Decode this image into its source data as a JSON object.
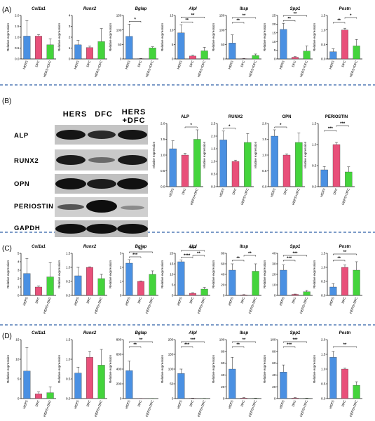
{
  "colors": {
    "HERS": "#4a90e2",
    "DFC": "#e8507a",
    "HERS+DFC": "#44d43c",
    "divider": "#2f5fa8"
  },
  "panel_labels": [
    "(A)",
    "(B)",
    "(C)",
    "(D)"
  ],
  "western_blot": {
    "headers": [
      "HERS",
      "DFC",
      "HERS",
      "+DFC"
    ],
    "bands": [
      "ALP",
      "RUNX2",
      "OPN",
      "PERIOSTIN",
      "GAPDH"
    ]
  },
  "chart_data": [
    {
      "id": "A-Col1a1",
      "type": "bar",
      "title": "Col1a1",
      "italic": true,
      "ylabel": "Relative expression",
      "categories": [
        "HERS",
        "DFC",
        "HERS+DFC"
      ],
      "values": [
        1.05,
        1.05,
        0.65
      ],
      "errors": [
        0.7,
        0.07,
        0.28
      ],
      "ylim": [
        0,
        2
      ],
      "yticks": [
        0,
        0.5,
        1,
        1.5,
        2
      ],
      "ytick_labels": [
        "0.0",
        "0.5",
        "1.0",
        "1.5",
        "2.0"
      ],
      "sig": []
    },
    {
      "id": "A-Runx2",
      "type": "bar",
      "title": "Runx2",
      "italic": true,
      "ylabel": "Relative expression",
      "categories": [
        "HERS",
        "DFC",
        "HERS+DFC"
      ],
      "values": [
        1.3,
        1.05,
        1.6
      ],
      "errors": [
        0.4,
        0.12,
        1.2
      ],
      "ylim": [
        0,
        4
      ],
      "yticks": [
        0,
        1,
        2,
        3,
        4
      ],
      "ytick_labels": [
        "0",
        "1",
        "2",
        "3",
        "4"
      ],
      "sig": []
    },
    {
      "id": "A-Bglap",
      "type": "bar",
      "title": "Bglap",
      "italic": true,
      "ylabel": "Relative expression",
      "categories": [
        "HERS",
        "DFC",
        "HERS+DFC"
      ],
      "values": [
        78,
        1,
        38
      ],
      "errors": [
        42,
        0.5,
        4
      ],
      "ylim": [
        0,
        150
      ],
      "yticks": [
        0,
        50,
        100,
        150
      ],
      "ytick_labels": [
        "0",
        "50",
        "100",
        "150"
      ],
      "sig": [
        {
          "a": 0,
          "b": 1,
          "label": "*"
        }
      ]
    },
    {
      "id": "A-Alpl",
      "type": "bar",
      "title": "Alpl",
      "italic": true,
      "ylabel": "Relative expression",
      "categories": [
        "HERS",
        "DFC",
        "HERS+DFC"
      ],
      "values": [
        9,
        1,
        2.8
      ],
      "errors": [
        2.8,
        0.3,
        1.2
      ],
      "ylim": [
        0,
        15
      ],
      "yticks": [
        0,
        5,
        10,
        15
      ],
      "ytick_labels": [
        "0",
        "5",
        "10",
        "15"
      ],
      "sig": [
        {
          "a": 0,
          "b": 1,
          "label": "**"
        },
        {
          "a": 0,
          "b": 2,
          "label": "**"
        }
      ]
    },
    {
      "id": "A-Ibsp",
      "type": "bar",
      "title": "Ibsp",
      "italic": true,
      "ylabel": "Relative expression",
      "categories": [
        "HERS",
        "DFC",
        "HERS+DFC"
      ],
      "values": [
        55,
        1,
        12
      ],
      "errors": [
        28,
        0.5,
        5
      ],
      "ylim": [
        0,
        150
      ],
      "yticks": [
        0,
        50,
        100,
        150
      ],
      "ytick_labels": [
        "0",
        "50",
        "100",
        "150"
      ],
      "sig": [
        {
          "a": 0,
          "b": 1,
          "label": "**"
        },
        {
          "a": 0,
          "b": 2,
          "label": "**"
        }
      ]
    },
    {
      "id": "A-Spp1",
      "type": "bar",
      "title": "Spp1",
      "italic": true,
      "ylabel": "Relative expression",
      "categories": [
        "HERS",
        "DFC",
        "HERS+DFC"
      ],
      "values": [
        17,
        1,
        4.5
      ],
      "errors": [
        3.5,
        0.3,
        3
      ],
      "ylim": [
        0,
        25
      ],
      "yticks": [
        0,
        5,
        10,
        15,
        20,
        25
      ],
      "ytick_labels": [
        "0",
        "5",
        "10",
        "15",
        "20",
        "25"
      ],
      "sig": [
        {
          "a": 0,
          "b": 1,
          "label": "**"
        },
        {
          "a": 0,
          "b": 2,
          "label": "**"
        }
      ]
    },
    {
      "id": "A-Postn",
      "type": "bar",
      "title": "Postn",
      "italic": true,
      "ylabel": "Relative expression",
      "categories": [
        "HERS",
        "DFC",
        "HERS+DFC"
      ],
      "values": [
        0.25,
        1.0,
        0.45
      ],
      "errors": [
        0.1,
        0.06,
        0.22
      ],
      "ylim": [
        0,
        1.5
      ],
      "yticks": [
        0,
        0.5,
        1,
        1.5
      ],
      "ytick_labels": [
        "0.0",
        "0.5",
        "1.0",
        "1.5"
      ],
      "sig": [
        {
          "a": 0,
          "b": 1,
          "label": "**"
        },
        {
          "a": 1,
          "b": 2,
          "label": "*"
        }
      ]
    },
    {
      "id": "B-ALP",
      "type": "bar",
      "title": "ALP",
      "italic": false,
      "ylabel": "relative expression",
      "categories": [
        "HERS",
        "DFC",
        "HERS+DFC"
      ],
      "values": [
        1.2,
        1.0,
        1.5
      ],
      "errors": [
        0.25,
        0.05,
        0.3
      ],
      "ylim": [
        0,
        2
      ],
      "yticks": [
        0,
        0.5,
        1,
        1.5,
        2
      ],
      "ytick_labels": [
        "0.0",
        "0.5",
        "1.0",
        "1.5",
        "2.0"
      ],
      "sig": [
        {
          "a": 1,
          "b": 2,
          "label": "*"
        }
      ]
    },
    {
      "id": "B-RUNX2",
      "type": "bar",
      "title": "RUNX2",
      "italic": false,
      "ylabel": "relative expression",
      "categories": [
        "HERS",
        "DFC",
        "HERS+DFC"
      ],
      "values": [
        1.85,
        1.0,
        1.75
      ],
      "errors": [
        0.35,
        0.05,
        0.35
      ],
      "ylim": [
        0,
        2.5
      ],
      "yticks": [
        0,
        0.5,
        1,
        1.5,
        2,
        2.5
      ],
      "ytick_labels": [
        "0.0",
        "0.5",
        "1.0",
        "1.5",
        "2.0",
        "2.5"
      ],
      "sig": [
        {
          "a": 0,
          "b": 1,
          "label": "*"
        }
      ]
    },
    {
      "id": "B-OPN",
      "type": "bar",
      "title": "OPN",
      "italic": false,
      "ylabel": "relative expression",
      "categories": [
        "HERS",
        "DFC",
        "HERS+DFC"
      ],
      "values": [
        1.6,
        1.0,
        1.4
      ],
      "errors": [
        0.2,
        0.04,
        0.3
      ],
      "ylim": [
        0,
        2
      ],
      "yticks": [
        0,
        0.5,
        1,
        1.5,
        2
      ],
      "ytick_labels": [
        "0.0",
        "0.5",
        "1.0",
        "1.5",
        "2.0"
      ],
      "sig": [
        {
          "a": 0,
          "b": 1,
          "label": "*"
        }
      ]
    },
    {
      "id": "B-PERIOSTIN",
      "type": "bar",
      "title": "PERIOSTIN",
      "italic": false,
      "ylabel": "relative expression",
      "categories": [
        "HERS",
        "DFC",
        "HERS+DFC"
      ],
      "values": [
        0.4,
        1.0,
        0.35
      ],
      "errors": [
        0.08,
        0.05,
        0.12
      ],
      "ylim": [
        0,
        1.5
      ],
      "yticks": [
        0,
        0.5,
        1,
        1.5
      ],
      "ytick_labels": [
        "0.0",
        "0.5",
        "1.0",
        "1.5"
      ],
      "sig": [
        {
          "a": 0,
          "b": 1,
          "label": "***"
        },
        {
          "a": 1,
          "b": 2,
          "label": "***"
        }
      ]
    },
    {
      "id": "C-Col1a1",
      "type": "bar",
      "title": "Col1a1",
      "italic": true,
      "ylabel": "Relative expression",
      "categories": [
        "HERS",
        "DFC",
        "HERS+DFC"
      ],
      "values": [
        2.6,
        1.0,
        2.2
      ],
      "errors": [
        1.8,
        0.1,
        1.7
      ],
      "ylim": [
        0,
        5
      ],
      "yticks": [
        0,
        1,
        2,
        3,
        4,
        5
      ],
      "ytick_labels": [
        "0",
        "1",
        "2",
        "3",
        "4",
        "5"
      ],
      "sig": []
    },
    {
      "id": "C-Runx2",
      "type": "bar",
      "title": "Runx2",
      "italic": true,
      "ylabel": "Relative expression",
      "categories": [
        "HERS",
        "DFC",
        "HERS+DFC"
      ],
      "values": [
        0.7,
        1.0,
        0.6
      ],
      "errors": [
        0.3,
        0.02,
        0.15
      ],
      "ylim": [
        0,
        1.5
      ],
      "yticks": [
        0,
        0.5,
        1,
        1.5
      ],
      "ytick_labels": [
        "0.0",
        "0.5",
        "1.0",
        "1.5"
      ],
      "sig": []
    },
    {
      "id": "C-Bglap",
      "type": "bar",
      "title": "Bglap",
      "italic": true,
      "ylabel": "Relative expression",
      "categories": [
        "HERS",
        "DFC",
        "HERS+DFC"
      ],
      "values": [
        2.3,
        1.0,
        1.5
      ],
      "errors": [
        0.25,
        0.03,
        0.25
      ],
      "ylim": [
        0,
        3
      ],
      "yticks": [
        0,
        1,
        2,
        3
      ],
      "ytick_labels": [
        "0",
        "1",
        "2",
        "3"
      ],
      "sig": [
        {
          "a": 0,
          "b": 1,
          "label": "***"
        },
        {
          "a": 0,
          "b": 2,
          "label": "**"
        }
      ]
    },
    {
      "id": "C-Alpl",
      "type": "bar",
      "title": "Alpl",
      "italic": true,
      "ylabel": "Relative expression",
      "categories": [
        "HERS",
        "DFC",
        "HERS+DFC"
      ],
      "values": [
        16,
        1,
        3
      ],
      "errors": [
        0.8,
        0.3,
        0.8
      ],
      "ylim": [
        0,
        20
      ],
      "yticks": [
        0,
        5,
        10,
        15,
        20
      ],
      "ytick_labels": [
        "0",
        "5",
        "10",
        "15",
        "20"
      ],
      "sig": [
        {
          "a": 0,
          "b": 1,
          "label": "****"
        },
        {
          "a": 1,
          "b": 2,
          "label": "**"
        },
        {
          "a": 0,
          "b": 2,
          "label": "****"
        }
      ]
    },
    {
      "id": "C-Ibsp",
      "type": "bar",
      "title": "Ibsp",
      "italic": true,
      "ylabel": "Relative expression",
      "categories": [
        "HERS",
        "DFC",
        "HERS+DFC"
      ],
      "values": [
        48,
        1,
        46
      ],
      "errors": [
        12,
        0.5,
        14
      ],
      "ylim": [
        0,
        80
      ],
      "yticks": [
        0,
        20,
        40,
        60,
        80
      ],
      "ytick_labels": [
        "0",
        "20",
        "40",
        "60",
        "80"
      ],
      "sig": [
        {
          "a": 0,
          "b": 1,
          "label": "**"
        },
        {
          "a": 1,
          "b": 2,
          "label": "**"
        }
      ]
    },
    {
      "id": "C-Spp1",
      "type": "bar",
      "title": "Spp1",
      "italic": true,
      "ylabel": "Relative expression",
      "categories": [
        "HERS",
        "DFC",
        "HERS+DFC"
      ],
      "values": [
        24,
        1,
        3.5
      ],
      "errors": [
        5,
        0.3,
        1.2
      ],
      "ylim": [
        0,
        40
      ],
      "yticks": [
        0,
        10,
        20,
        30,
        40
      ],
      "ytick_labels": [
        "0",
        "10",
        "20",
        "30",
        "40"
      ],
      "sig": [
        {
          "a": 0,
          "b": 1,
          "label": "***"
        },
        {
          "a": 0,
          "b": 2,
          "label": "***"
        }
      ]
    },
    {
      "id": "C-Postn",
      "type": "bar",
      "title": "Postn",
      "italic": true,
      "ylabel": "Relative expression",
      "categories": [
        "HERS",
        "DFC",
        "HERS+DFC"
      ],
      "values": [
        0.3,
        1.0,
        0.9
      ],
      "errors": [
        0.12,
        0.08,
        0.3
      ],
      "ylim": [
        0,
        1.5
      ],
      "yticks": [
        0,
        0.5,
        1,
        1.5
      ],
      "ytick_labels": [
        "0.0",
        "0.5",
        "1.0",
        "1.5"
      ],
      "sig": [
        {
          "a": 0,
          "b": 1,
          "label": "**"
        },
        {
          "a": 0,
          "b": 2,
          "label": "**"
        }
      ]
    },
    {
      "id": "D-Col1a1",
      "type": "bar",
      "title": "Col1a1",
      "italic": true,
      "ylabel": "Relative expression",
      "categories": [
        "HERS",
        "DFC",
        "HERS+DFC"
      ],
      "values": [
        7,
        1.2,
        1.5
      ],
      "errors": [
        6,
        0.5,
        1.5
      ],
      "ylim": [
        0,
        15
      ],
      "yticks": [
        0,
        5,
        10,
        15
      ],
      "ytick_labels": [
        "0",
        "5",
        "10",
        "15"
      ],
      "sig": []
    },
    {
      "id": "D-Runx2",
      "type": "bar",
      "title": "Runx2",
      "italic": true,
      "ylabel": "Relative expression",
      "categories": [
        "HERS",
        "DFC",
        "HERS+DFC"
      ],
      "values": [
        0.65,
        1.05,
        0.85
      ],
      "errors": [
        0.15,
        0.15,
        0.4
      ],
      "ylim": [
        0,
        1.5
      ],
      "yticks": [
        0,
        0.5,
        1,
        1.5
      ],
      "ytick_labels": [
        "0.0",
        "0.5",
        "1.0",
        "1.5"
      ],
      "sig": []
    },
    {
      "id": "D-Bglap",
      "type": "bar",
      "title": "Bglap",
      "italic": true,
      "ylabel": "Relative expression",
      "categories": [
        "HERS",
        "DFC",
        "HERS+DFC"
      ],
      "values": [
        380,
        1,
        0.5
      ],
      "errors": [
        130,
        0.5,
        0.3
      ],
      "ylim": [
        0,
        800
      ],
      "yticks": [
        0,
        200,
        400,
        600,
        800
      ],
      "ytick_labels": [
        "0",
        "200",
        "400",
        "600",
        "800"
      ],
      "sig": [
        {
          "a": 0,
          "b": 1,
          "label": "**"
        },
        {
          "a": 0,
          "b": 2,
          "label": "**"
        }
      ]
    },
    {
      "id": "D-Alpl",
      "type": "bar",
      "title": "Alpl",
      "italic": true,
      "ylabel": "Relative expression",
      "categories": [
        "HERS",
        "DFC",
        "HERS+DFC"
      ],
      "values": [
        85,
        1,
        0.5
      ],
      "errors": [
        15,
        0.5,
        0.3
      ],
      "ylim": [
        0,
        200
      ],
      "yticks": [
        0,
        50,
        100,
        150,
        200
      ],
      "ytick_labels": [
        "0",
        "50",
        "100",
        "150",
        "200"
      ],
      "sig": [
        {
          "a": 0,
          "b": 1,
          "label": "***"
        },
        {
          "a": 0,
          "b": 2,
          "label": "***"
        }
      ]
    },
    {
      "id": "D-Ibsp",
      "type": "bar",
      "title": "Ibsp",
      "italic": true,
      "ylabel": "Relative expression",
      "categories": [
        "HERS",
        "DFC",
        "HERS+DFC"
      ],
      "values": [
        50,
        1,
        0.5
      ],
      "errors": [
        20,
        0.5,
        0.3
      ],
      "ylim": [
        0,
        100
      ],
      "yticks": [
        0,
        20,
        40,
        60,
        80,
        100
      ],
      "ytick_labels": [
        "0",
        "20",
        "40",
        "60",
        "80",
        "100"
      ],
      "sig": [
        {
          "a": 0,
          "b": 1,
          "label": "**"
        },
        {
          "a": 0,
          "b": 2,
          "label": "**"
        }
      ]
    },
    {
      "id": "D-Spp1",
      "type": "bar",
      "title": "Spp1",
      "italic": true,
      "ylabel": "Relative expression",
      "categories": [
        "HERS",
        "DFC",
        "HERS+DFC"
      ],
      "values": [
        45,
        1,
        0.5
      ],
      "errors": [
        12,
        0.5,
        0.3
      ],
      "ylim": [
        0,
        100
      ],
      "yticks": [
        0,
        20,
        40,
        60,
        80,
        100
      ],
      "ytick_labels": [
        "0",
        "20",
        "40",
        "60",
        "80",
        "100"
      ],
      "sig": [
        {
          "a": 0,
          "b": 1,
          "label": "***"
        },
        {
          "a": 0,
          "b": 2,
          "label": "***"
        }
      ]
    },
    {
      "id": "D-Postn",
      "type": "bar",
      "title": "Postn",
      "italic": true,
      "ylabel": "Relative expression",
      "categories": [
        "HERS",
        "DFC",
        "HERS+DFC"
      ],
      "values": [
        1.4,
        1.0,
        0.45
      ],
      "errors": [
        0.2,
        0.03,
        0.12
      ],
      "ylim": [
        0,
        2
      ],
      "yticks": [
        0,
        0.5,
        1,
        1.5,
        2
      ],
      "ytick_labels": [
        "0.0",
        "0.5",
        "1.0",
        "1.5",
        "2.0"
      ],
      "sig": [
        {
          "a": 0,
          "b": 2,
          "label": "**"
        }
      ]
    }
  ]
}
